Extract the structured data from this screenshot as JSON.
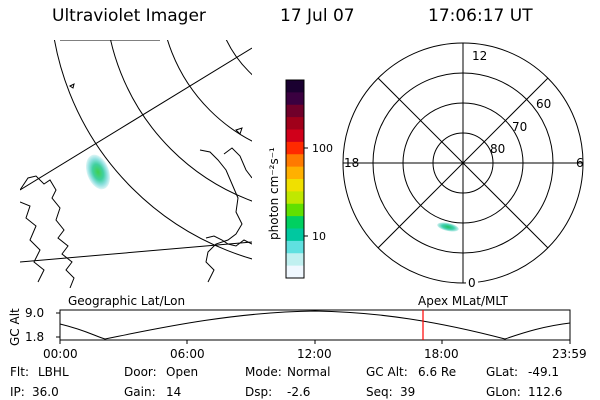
{
  "header": {
    "title": "Ultraviolet Imager",
    "date": "17 Jul 07",
    "time": "17:06:17 UT"
  },
  "colorbar": {
    "unit_label": "photon cm⁻²s⁻¹",
    "ticks": [
      "100",
      "10"
    ],
    "colors": [
      "#1a0030",
      "#3a0040",
      "#70002a",
      "#a0001a",
      "#d0001a",
      "#ff2a00",
      "#ff7a00",
      "#ffb000",
      "#f0e000",
      "#c0e800",
      "#60e000",
      "#00d060",
      "#00c8a0",
      "#60e0e0",
      "#c0f0f0",
      "#f0f8ff"
    ]
  },
  "left_map": {
    "label": "Geographic Lat/Lon"
  },
  "polar_plot": {
    "label": "Apex MLat/MLT",
    "mlt_labels": {
      "top": "12",
      "bottom": "0",
      "left": "18",
      "right": "6"
    },
    "lat_labels": [
      "60",
      "70",
      "80"
    ]
  },
  "altitude_strip": {
    "axis_label": "GC Alt",
    "y_ticks": [
      "9.0",
      "1.8"
    ],
    "x_ticks": [
      "00:00",
      "06:00",
      "12:00",
      "18:00",
      "23:59"
    ],
    "marker_color": "#ff0000"
  },
  "info": {
    "row1": [
      {
        "label": "Flt:",
        "value": "LBHL"
      },
      {
        "label": "Door:",
        "value": "Open"
      },
      {
        "label": "Mode:",
        "value": "Normal"
      },
      {
        "label": "GC Alt:",
        "value": "6.6 Re"
      },
      {
        "label": "GLat:",
        "value": "-49.1"
      }
    ],
    "row2": [
      {
        "label": "IP:",
        "value": "36.0"
      },
      {
        "label": "Gain:",
        "value": "14"
      },
      {
        "label": "Dsp:",
        "value": "-2.6"
      },
      {
        "label": "Seq:",
        "value": "39"
      },
      {
        "label": "GLon:",
        "value": "112.6"
      }
    ]
  }
}
